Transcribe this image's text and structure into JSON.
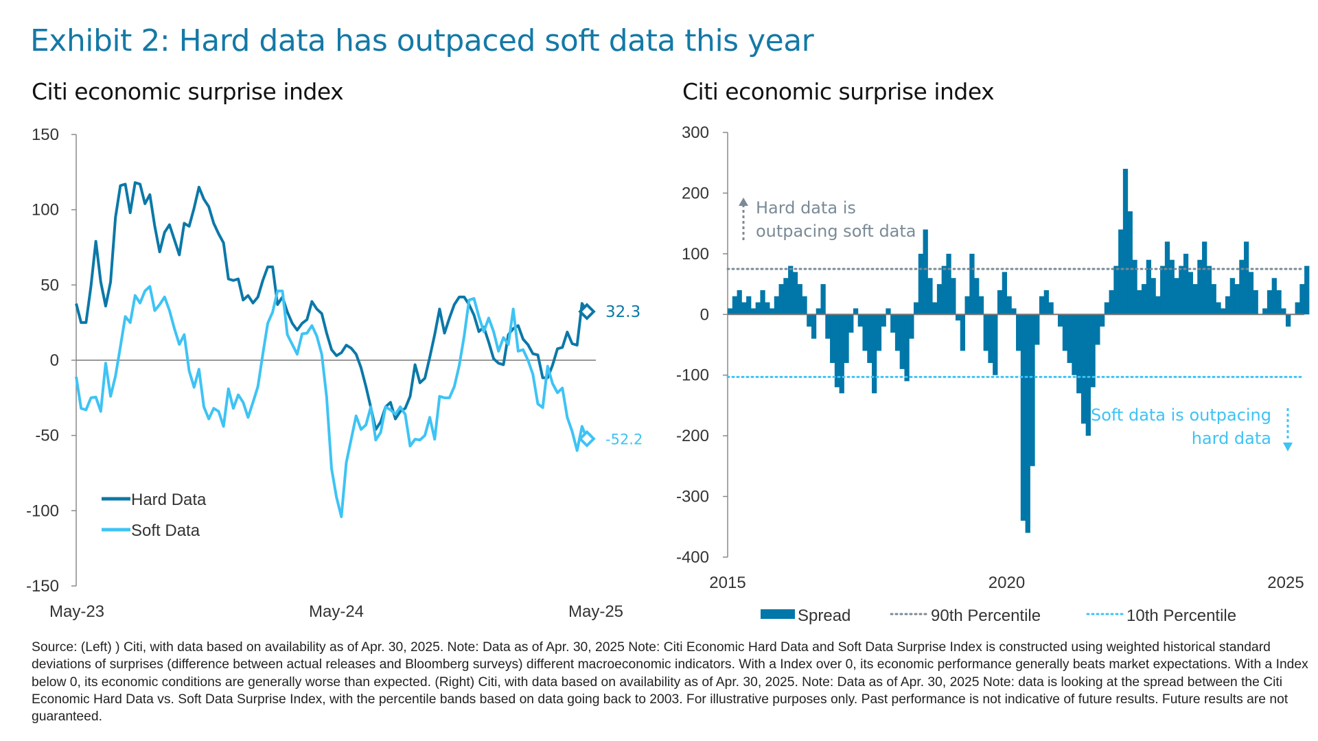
{
  "title": "Exhibit 2: Hard data has outpaced soft data this year",
  "colors": {
    "title": "#1479a6",
    "hard": "#0b78a8",
    "soft": "#3ec3f4",
    "spread": "#0077a8",
    "p90": "#7a8a96",
    "p10": "#3ec3f4"
  },
  "footer": "Source: (Left) ) Citi, with data based on availability as of Apr. 30, 2025. Note: Data as of Apr. 30, 2025 Note: Citi Economic Hard Data and Soft Data Surprise Index is constructed using weighted historical standard deviations of surprises (difference between actual releases and Bloomberg surveys) different macroeconomic indicators. With a Index over 0, its economic performance generally beats market expectations. With a Index below 0, its economic conditions are generally worse than expected. (Right) Citi, with data based on availability as of Apr. 30, 2025. Note: Data as of Apr. 30, 2025 Note: data is looking at the spread between the Citi Economic Hard Data vs. Soft Data Surprise Index, with the percentile bands based on data going back to 2003. For illustrative purposes only. Past performance is not indicative of future results. Future results are not guaranteed.",
  "chart_data": [
    {
      "type": "line",
      "title": "Citi economic surprise index",
      "ylim": [
        -150,
        150
      ],
      "yticks": [
        "150",
        "100",
        "50",
        "0",
        "-50",
        "-100",
        "-150"
      ],
      "xticks": [
        "May-23",
        "May-24",
        "May-25"
      ],
      "legend": "bottom-left",
      "grid": false,
      "series": [
        {
          "name": "Hard Data",
          "end_label": "32.3",
          "values": [
            37.6,
            25,
            25,
            49,
            79,
            52,
            36,
            52,
            95,
            116,
            117,
            98,
            118,
            117,
            104,
            110,
            89,
            72,
            85,
            90,
            80,
            70,
            91,
            89,
            101,
            115,
            107,
            102,
            91,
            84,
            78,
            54,
            53,
            54,
            40,
            43,
            38,
            42,
            53,
            62,
            62,
            37,
            42,
            32,
            24.5,
            20,
            24.5,
            27,
            39,
            34,
            31,
            18,
            7,
            3,
            5,
            10,
            8,
            4,
            -5,
            -17.5,
            -31.5,
            -46,
            -41,
            -31,
            -28,
            -39,
            -34,
            -32,
            -24,
            -3,
            -15,
            -12,
            2,
            17,
            34,
            18,
            28,
            37,
            42,
            42,
            37,
            30,
            19,
            22,
            12,
            1,
            -2,
            -3,
            17,
            21,
            23,
            14,
            10.3,
            4.3,
            3.5,
            -11.7,
            -11.7,
            -3.3,
            7.6,
            8.5,
            18.7,
            11,
            10,
            37.7,
            32.3
          ]
        },
        {
          "name": "Soft Data",
          "end_label": "-52.2",
          "values": [
            -11,
            -32,
            -33,
            -25,
            -24.5,
            -34,
            -2,
            -24,
            -10.5,
            9,
            29,
            25,
            43,
            38,
            46,
            49,
            33,
            37,
            42,
            33,
            21,
            10.5,
            17,
            -7,
            -18,
            -6,
            -31,
            -39,
            -32,
            -34,
            -44,
            -19,
            -32,
            -23,
            -28,
            -38,
            -28,
            -17.5,
            4,
            24.5,
            32,
            46,
            46,
            17,
            10.5,
            4,
            17.5,
            18,
            23,
            16,
            4,
            -24.5,
            -72,
            -91,
            -104,
            -68,
            -52.5,
            -37,
            -46,
            -43,
            -31,
            -53,
            -48,
            -31,
            -33,
            -36,
            -31,
            -36,
            -57,
            -52.5,
            -53,
            -50,
            -38,
            -52.5,
            -24,
            -25,
            -25,
            -17.5,
            -3.5,
            16,
            40,
            41,
            29,
            19,
            28,
            19,
            6,
            15,
            10.5,
            34,
            6,
            7,
            0,
            -9.4,
            -29,
            -31.5,
            -4,
            -15.5,
            -21.6,
            -18.5,
            -38,
            -47.4,
            -60,
            -44,
            -52.2
          ]
        }
      ]
    },
    {
      "type": "bar",
      "title": "Citi economic surprise index",
      "ylim": [
        -400,
        300
      ],
      "yticks": [
        "300",
        "200",
        "100",
        "0",
        "-100",
        "-200",
        "-300",
        "-400"
      ],
      "xticks": [
        "2015",
        "2020",
        "2025"
      ],
      "xlim": [
        2015,
        2025.33
      ],
      "legend": "bottom",
      "grid": false,
      "annotations": {
        "upper": [
          "Hard data is",
          "outpacing soft data"
        ],
        "lower": [
          "Soft data is outpacing",
          "hard data"
        ]
      },
      "percentiles": {
        "p90": {
          "name": "90th Percentile",
          "value": 75
        },
        "p10": {
          "name": "10th Percentile",
          "value": -103
        }
      },
      "series": [
        {
          "name": "Spread",
          "start": 2015,
          "step": "monthly",
          "values": [
            10,
            30,
            40,
            20,
            30,
            10,
            20,
            40,
            20,
            10,
            30,
            50,
            60,
            80,
            70,
            50,
            30,
            -20,
            -40,
            10,
            50,
            -40,
            -80,
            -120,
            -130,
            -80,
            -30,
            10,
            -20,
            -60,
            -80,
            -130,
            -60,
            -20,
            10,
            -30,
            -60,
            -90,
            -110,
            -40,
            20,
            100,
            140,
            60,
            20,
            50,
            80,
            100,
            60,
            -10,
            -60,
            30,
            100,
            60,
            30,
            -60,
            -80,
            -100,
            40,
            70,
            30,
            10,
            -60,
            -340,
            -360,
            -250,
            -50,
            30,
            40,
            20,
            0,
            -20,
            -60,
            -80,
            -100,
            -130,
            -180,
            -200,
            -120,
            -50,
            -20,
            20,
            40,
            80,
            140,
            240,
            170,
            90,
            40,
            50,
            90,
            60,
            30,
            80,
            120,
            90,
            60,
            80,
            100,
            70,
            50,
            90,
            120,
            80,
            50,
            20,
            10,
            30,
            60,
            50,
            90,
            120,
            70,
            40,
            0,
            10,
            40,
            60,
            40,
            10,
            -20,
            0,
            20,
            50,
            80
          ]
        }
      ]
    }
  ]
}
